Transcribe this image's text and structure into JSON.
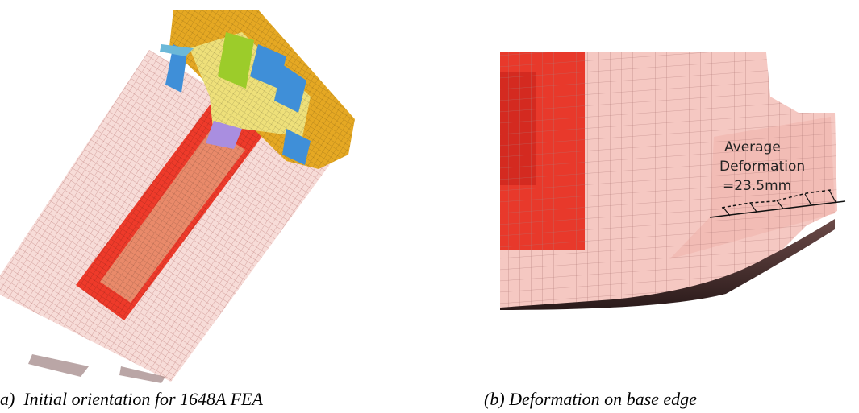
{
  "figure": {
    "panels": [
      {
        "caption": "a)  Initial orientation for 1648A FEA"
      },
      {
        "caption": "(b) Deformation on base edge",
        "annotation": [
          "Average",
          "Deformation",
          "=23.5mm"
        ]
      }
    ]
  }
}
